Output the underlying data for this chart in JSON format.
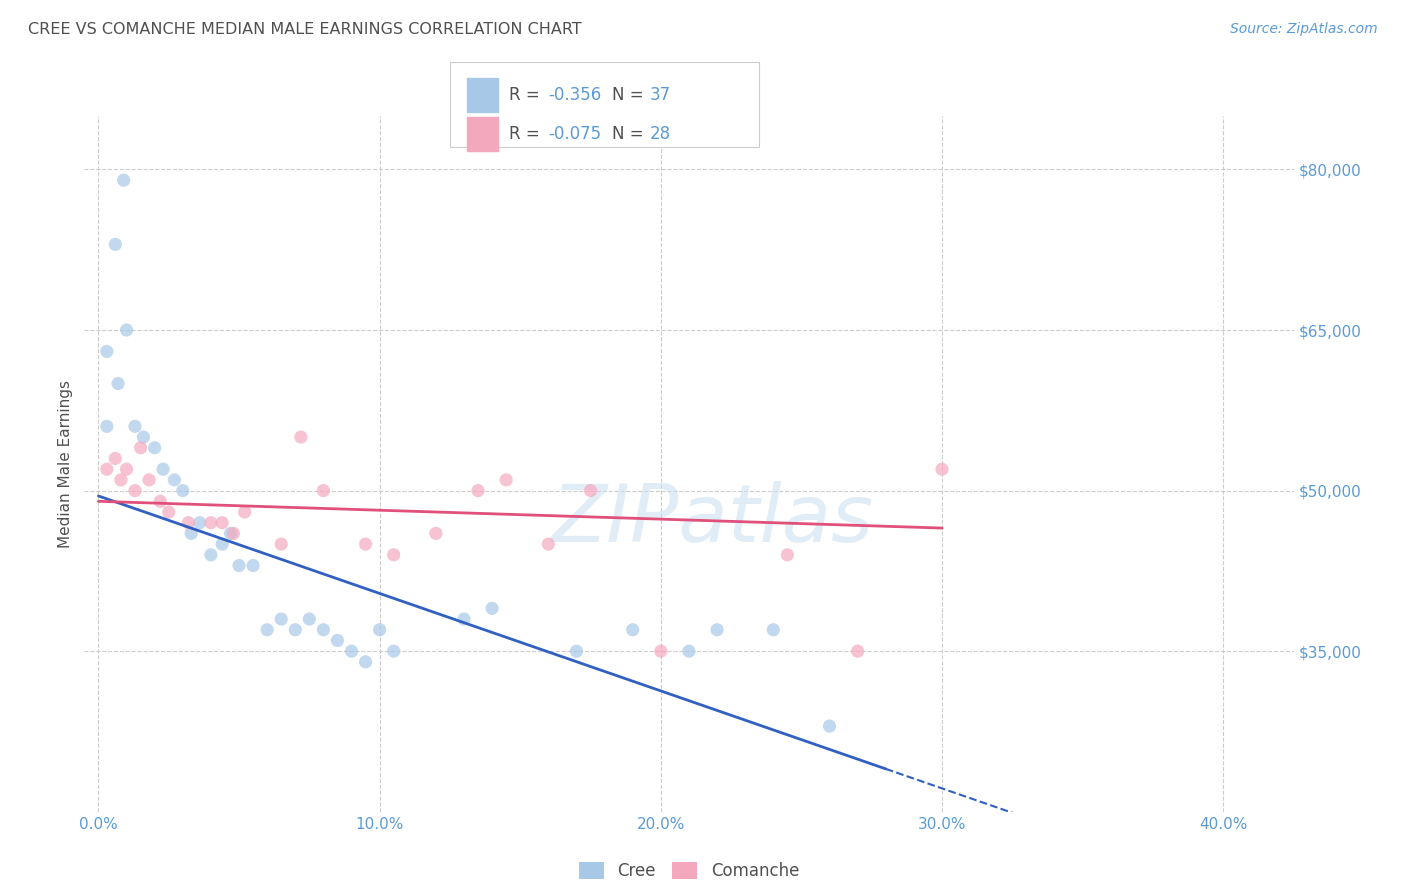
{
  "title": "CREE VS COMANCHE MEDIAN MALE EARNINGS CORRELATION CHART",
  "source": "Source: ZipAtlas.com",
  "ylabel": "Median Male Earnings",
  "watermark": "ZIPatlas",
  "cree_color": "#a8c8e8",
  "comanche_color": "#f4a8be",
  "cree_line_color": "#3060c0",
  "comanche_line_color": "#e0507a",
  "title_color": "#505050",
  "ylabel_color": "#505050",
  "tick_color": "#5b9bd5",
  "grid_color": "#cccccc",
  "background_color": "#ffffff",
  "xlim": [
    -0.005,
    0.425
  ],
  "ylim": [
    20000,
    85000
  ],
  "yticks_right": [
    35000,
    50000,
    65000,
    80000
  ],
  "ytick_labels_right": [
    "$35,000",
    "$50,000",
    "$65,000",
    "$80,000"
  ],
  "xticks": [
    0.0,
    0.1,
    0.2,
    0.3,
    0.4
  ],
  "xtick_labels": [
    "0.0%",
    "10.0%",
    "20.0%",
    "30.0%",
    "40.0%"
  ],
  "cree_x": [
    0.003,
    0.006,
    0.009,
    0.003,
    0.007,
    0.01,
    0.013,
    0.016,
    0.02,
    0.023,
    0.027,
    0.03,
    0.033,
    0.036,
    0.04,
    0.044,
    0.047,
    0.05,
    0.055,
    0.06,
    0.065,
    0.07,
    0.075,
    0.08,
    0.085,
    0.09,
    0.095,
    0.1,
    0.105,
    0.13,
    0.14,
    0.17,
    0.19,
    0.21,
    0.22,
    0.24,
    0.26
  ],
  "cree_y": [
    56000,
    73000,
    79000,
    63000,
    60000,
    65000,
    56000,
    55000,
    54000,
    52000,
    51000,
    50000,
    46000,
    47000,
    44000,
    45000,
    46000,
    43000,
    43000,
    37000,
    38000,
    37000,
    38000,
    37000,
    36000,
    35000,
    34000,
    37000,
    35000,
    38000,
    39000,
    35000,
    37000,
    35000,
    37000,
    37000,
    28000
  ],
  "comanche_x": [
    0.003,
    0.006,
    0.008,
    0.01,
    0.013,
    0.015,
    0.018,
    0.022,
    0.025,
    0.032,
    0.04,
    0.044,
    0.048,
    0.052,
    0.065,
    0.072,
    0.08,
    0.095,
    0.105,
    0.12,
    0.135,
    0.145,
    0.16,
    0.175,
    0.2,
    0.245,
    0.27,
    0.3
  ],
  "comanche_y": [
    52000,
    53000,
    51000,
    52000,
    50000,
    54000,
    51000,
    49000,
    48000,
    47000,
    47000,
    47000,
    46000,
    48000,
    45000,
    55000,
    50000,
    45000,
    44000,
    46000,
    50000,
    51000,
    45000,
    50000,
    35000,
    44000,
    35000,
    52000
  ],
  "cree_line_x0": 0.0,
  "cree_line_x1": 0.28,
  "cree_line_x_dash_end": 0.41,
  "cree_line_y0": 49500,
  "cree_line_y1": 24000,
  "comanche_line_x0": 0.0,
  "comanche_line_x1": 0.3,
  "comanche_line_y0": 49000,
  "comanche_line_y1": 46500,
  "marker_size": 90,
  "marker_alpha": 0.7
}
